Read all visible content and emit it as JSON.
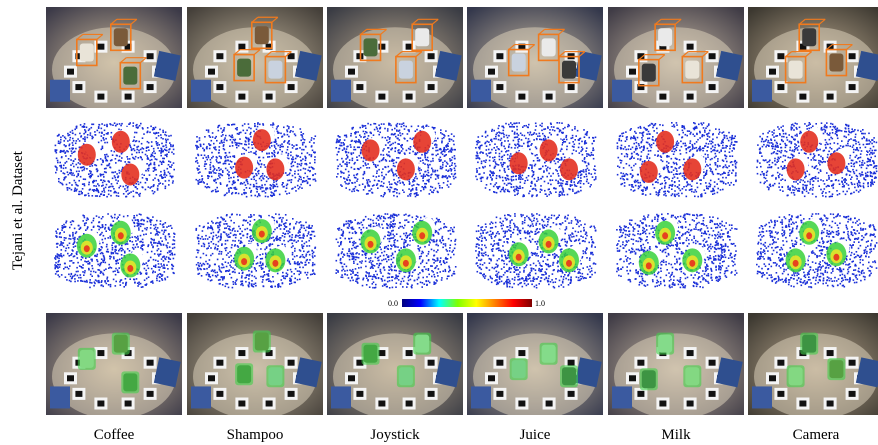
{
  "side_label": "Tejani et al. Dataset",
  "colorbar": {
    "min_label": "0.0",
    "max_label": "1.0"
  },
  "columns": [
    {
      "label": "Coffee"
    },
    {
      "label": "Shampoo"
    },
    {
      "label": "Joystick"
    },
    {
      "label": "Juice"
    },
    {
      "label": "Milk"
    },
    {
      "label": "Camera"
    }
  ],
  "colors": {
    "cloud_points": "#1a2fd8",
    "ground_truth_hot": "#e33020",
    "heat_green": "#38d13a",
    "heat_yellow": "#e8e42a",
    "heat_red": "#e8301e",
    "bbox_orange": "#f07a1e",
    "overlay_green": "#3fd14a"
  }
}
